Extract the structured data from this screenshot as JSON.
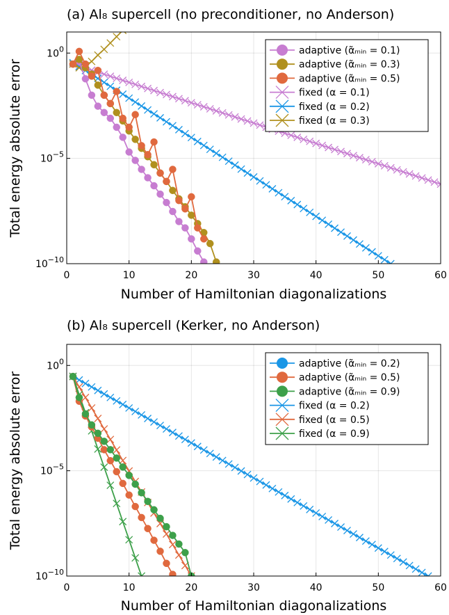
{
  "chart_data": [
    {
      "type": "line",
      "title": "(a) Al₈ supercell (no preconditioner, no Anderson)",
      "xlabel": "Number of Hamiltonian diagonalizations",
      "ylabel": "Total energy absolute error",
      "xlim": [
        0,
        60
      ],
      "ylim": [
        1e-10,
        10
      ],
      "yscale": "log",
      "xticks": [
        "0",
        "10",
        "20",
        "30",
        "40",
        "50",
        "60"
      ],
      "yticks": [
        {
          "base": "10",
          "exp": "0"
        },
        {
          "base": "10",
          "exp": "−5"
        },
        {
          "base": "10",
          "exp": "−10"
        }
      ],
      "grid": true,
      "legend_position": "top-right",
      "series": [
        {
          "name": "adaptive (α̃ₘᵢₙ = 0.1)",
          "marker": "circle",
          "color": "#c77dd1",
          "x": [
            1,
            2,
            3,
            4,
            5,
            6,
            7,
            8,
            9,
            10,
            11,
            12,
            13,
            14,
            15,
            16,
            17,
            18,
            19,
            20,
            21,
            22
          ],
          "y": [
            0.3,
            0.4,
            0.06,
            0.01,
            0.003,
            0.0015,
            0.0008,
            0.0003,
            0.0001,
            2e-05,
            8e-06,
            3e-06,
            1.2e-06,
            5e-07,
            2e-07,
            8e-08,
            3e-08,
            1e-08,
            5e-09,
            1.5e-09,
            4e-10,
            1.2e-10
          ]
        },
        {
          "name": "adaptive (α̃ₘᵢₙ = 0.3)",
          "marker": "circle",
          "color": "#b0901e",
          "x": [
            1,
            2,
            3,
            4,
            5,
            6,
            7,
            8,
            9,
            10,
            11,
            12,
            13,
            14,
            15,
            16,
            17,
            18,
            19,
            20,
            21,
            22,
            23,
            24
          ],
          "y": [
            0.3,
            0.5,
            0.2,
            0.1,
            0.03,
            0.01,
            0.004,
            0.0015,
            0.0006,
            0.0002,
            8e-05,
            3e-05,
            1.2e-05,
            5e-06,
            2e-06,
            8e-07,
            3e-07,
            1.2e-07,
            5e-08,
            2e-08,
            8e-09,
            3e-09,
            9e-10,
            1.2e-10
          ]
        },
        {
          "name": "adaptive (α̃ₘᵢₙ = 0.5)",
          "marker": "circle",
          "color": "#e0693e",
          "x": [
            1,
            2,
            3,
            4,
            5,
            6,
            7,
            8,
            9,
            10,
            11,
            12,
            13,
            14,
            15,
            16,
            17,
            18,
            19,
            20,
            21,
            22
          ],
          "y": [
            0.3,
            1.2,
            0.3,
            0.08,
            0.15,
            0.01,
            0.004,
            0.015,
            0.0008,
            0.0003,
            0.0012,
            4e-05,
            1.5e-05,
            6e-05,
            2e-06,
            8e-07,
            3e-06,
            1e-07,
            4e-08,
            1.5e-07,
            5e-09,
            1.5e-09
          ]
        },
        {
          "name": "fixed (α = 0.1)",
          "marker": "x",
          "color": "#c77dd1",
          "x_range": [
            1,
            60
          ],
          "y_start": 0.3,
          "y_end": 6e-07
        },
        {
          "name": "fixed (α = 0.2)",
          "marker": "x",
          "color": "#1a96e6",
          "x_range": [
            1,
            52
          ],
          "y_start": 0.35,
          "y_end": 1e-10
        },
        {
          "name": "fixed (α = 0.3)",
          "marker": "x",
          "color": "#b0901e",
          "x": [
            1,
            2,
            3,
            4,
            5,
            6,
            7,
            8,
            9,
            10
          ],
          "y": [
            0.3,
            0.2,
            0.25,
            0.4,
            0.8,
            1.5,
            3,
            6,
            12,
            25
          ]
        }
      ]
    },
    {
      "type": "line",
      "title": "(b) Al₈ supercell (Kerker, no Anderson)",
      "xlabel": "Number of Hamiltonian diagonalizations",
      "ylabel": "Total energy absolute error",
      "xlim": [
        0,
        60
      ],
      "ylim": [
        1e-10,
        10
      ],
      "yscale": "log",
      "xticks": [
        "0",
        "10",
        "20",
        "30",
        "40",
        "50",
        "60"
      ],
      "yticks": [
        {
          "base": "10",
          "exp": "0"
        },
        {
          "base": "10",
          "exp": "−5"
        },
        {
          "base": "10",
          "exp": "−10"
        }
      ],
      "grid": true,
      "legend_position": "top-right",
      "series": [
        {
          "name": "adaptive (α̃ₘᵢₙ = 0.2)",
          "marker": "circle",
          "color": "#1a96e6",
          "x": [],
          "y": []
        },
        {
          "name": "adaptive (α̃ₘᵢₙ = 0.5)",
          "marker": "circle",
          "color": "#e0693e",
          "x": [
            1,
            2,
            3,
            4,
            5,
            6,
            7,
            8,
            9,
            10,
            11,
            12,
            13,
            14,
            15,
            16,
            17
          ],
          "y": [
            0.3,
            0.02,
            0.004,
            0.0012,
            0.00035,
            0.0001,
            3e-05,
            9e-06,
            2.5e-06,
            7e-07,
            2e-07,
            6e-08,
            1.8e-08,
            5e-09,
            1.5e-09,
            4e-10,
            1.2e-10
          ]
        },
        {
          "name": "adaptive (α̃ₘᵢₙ = 0.9)",
          "marker": "circle",
          "color": "#3da04a",
          "x": [
            1,
            2,
            3,
            4,
            5,
            6,
            7,
            8,
            9,
            10,
            11,
            12,
            13,
            14,
            15,
            16,
            17,
            18,
            19,
            20
          ],
          "y": [
            0.3,
            0.03,
            0.005,
            0.0015,
            0.0006,
            0.00025,
            0.0001,
            4e-05,
            1.5e-05,
            6e-06,
            2.3e-06,
            9e-07,
            3.5e-07,
            1.4e-07,
            5.5e-08,
            2.2e-08,
            8.5e-09,
            3.3e-09,
            1.3e-09,
            1e-10
          ]
        },
        {
          "name": "fixed (α = 0.2)",
          "marker": "x",
          "color": "#1a96e6",
          "x_range": [
            1,
            58
          ],
          "y_start": 0.3,
          "y_end": 1e-10
        },
        {
          "name": "fixed (α = 0.5)",
          "marker": "x",
          "color": "#e0693e",
          "x_range": [
            1,
            20
          ],
          "y_start": 0.3,
          "y_end": 1e-10
        },
        {
          "name": "fixed (α = 0.9)",
          "marker": "x",
          "color": "#3da04a",
          "x_range": [
            1,
            12
          ],
          "y_start": 0.3,
          "y_end": 1e-10
        }
      ]
    }
  ]
}
